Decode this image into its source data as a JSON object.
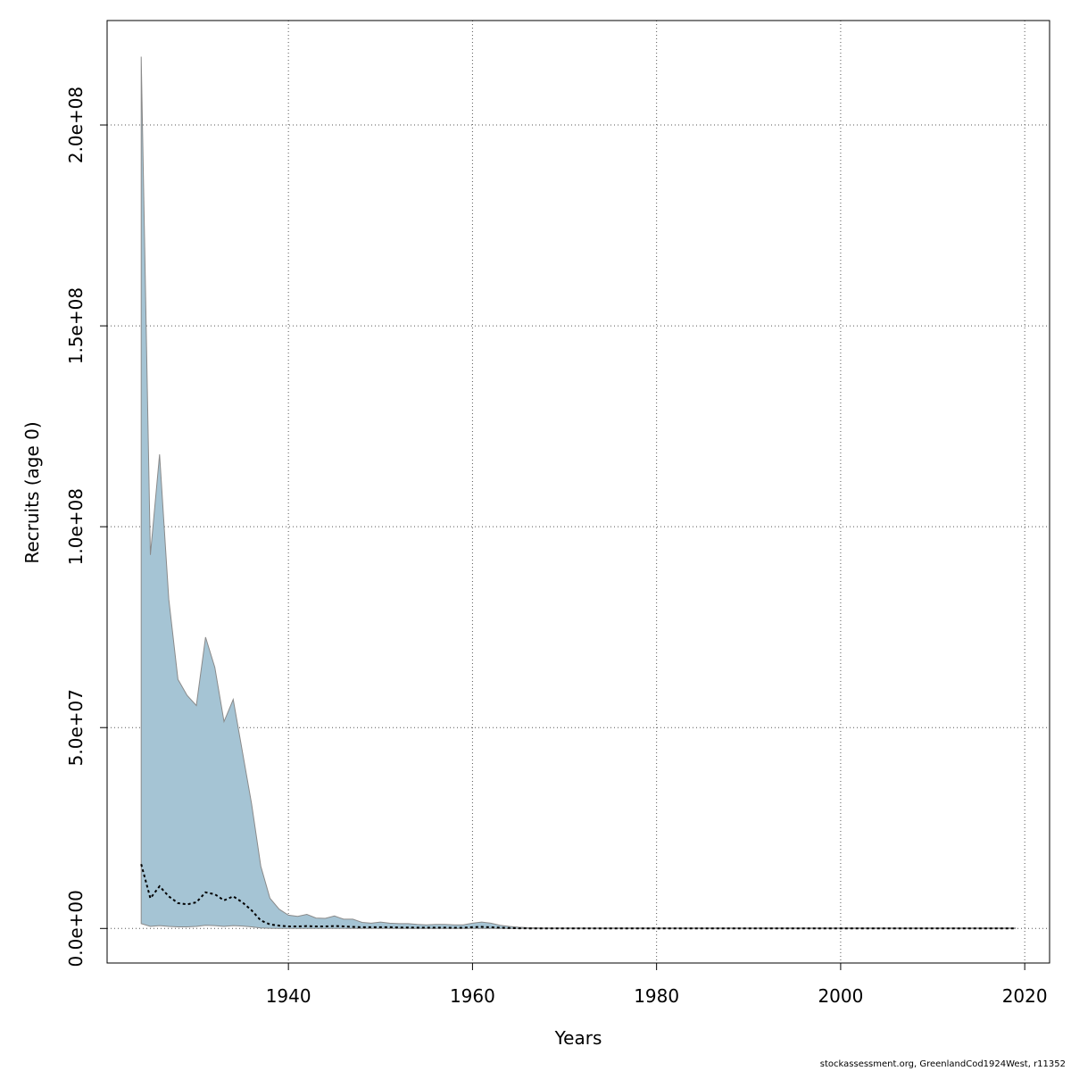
{
  "chart_data": {
    "type": "area",
    "xlabel": "Years",
    "ylabel": "Recruits (age 0)",
    "xlim": [
      1920.3,
      2022.7
    ],
    "ylim": [
      -8600000,
      226000000
    ],
    "xticks": [
      1940,
      1960,
      1980,
      2000,
      2020
    ],
    "xtick_labels": [
      "1940",
      "1960",
      "1980",
      "2000",
      "2020"
    ],
    "yticks": [
      0,
      50000000,
      100000000,
      150000000,
      200000000
    ],
    "ytick_labels": [
      "0.0e+00",
      "5.0e+07",
      "1.0e+08",
      "1.5e+08",
      "2.0e+08"
    ],
    "grid": true,
    "colors": {
      "band_fill": "#a5c4d4",
      "band_edge": "#8a8a8a",
      "line": "#000000",
      "grid": "#555555"
    },
    "x": [
      1924,
      1925,
      1926,
      1927,
      1928,
      1929,
      1930,
      1931,
      1932,
      1933,
      1934,
      1935,
      1936,
      1937,
      1938,
      1939,
      1940,
      1941,
      1942,
      1943,
      1944,
      1945,
      1946,
      1947,
      1948,
      1949,
      1950,
      1951,
      1952,
      1953,
      1954,
      1955,
      1956,
      1957,
      1958,
      1959,
      1960,
      1961,
      1962,
      1963,
      1964,
      1965,
      1966,
      1967,
      1968,
      1969,
      1970,
      1971,
      1972,
      1973,
      1974,
      1975,
      1976,
      1977,
      1978,
      1979,
      1980,
      1981,
      1982,
      1983,
      1984,
      1985,
      1986,
      1987,
      1988,
      1989,
      1990,
      1991,
      1992,
      1993,
      1994,
      1995,
      1996,
      1997,
      1998,
      1999,
      2000,
      2001,
      2002,
      2003,
      2004,
      2005,
      2006,
      2007,
      2008,
      2009,
      2010,
      2011,
      2012,
      2013,
      2014,
      2015,
      2016,
      2017,
      2018,
      2019
    ],
    "series": [
      {
        "role": "upper",
        "values": [
          217000000,
          93000000,
          118000000,
          82000000,
          62000000,
          58000000,
          55500000,
          72500000,
          65000000,
          51500000,
          57000000,
          44000000,
          31000000,
          15500000,
          7500000,
          4800000,
          3300000,
          3000000,
          3500000,
          2600000,
          2500000,
          3100000,
          2300000,
          2300000,
          1500000,
          1300000,
          1600000,
          1300000,
          1200000,
          1200000,
          1000000,
          900000,
          1000000,
          1000000,
          900000,
          900000,
          1300000,
          1600000,
          1300000,
          800000,
          500000,
          300000,
          200000,
          150000,
          120000,
          100000,
          100000,
          100000,
          100000,
          100000,
          100000,
          100000,
          100000,
          100000,
          100000,
          100000,
          100000,
          100000,
          100000,
          100000,
          100000,
          100000,
          100000,
          100000,
          100000,
          100000,
          100000,
          100000,
          100000,
          100000,
          100000,
          100000,
          100000,
          100000,
          100000,
          100000,
          100000,
          100000,
          100000,
          100000,
          100000,
          100000,
          100000,
          100000,
          100000,
          100000,
          100000,
          100000,
          100000,
          100000,
          100000,
          100000,
          100000,
          100000,
          100000,
          100000
        ]
      },
      {
        "role": "median",
        "values": [
          16000000,
          7500000,
          10500000,
          8000000,
          6300000,
          6000000,
          6500000,
          9000000,
          8500000,
          7000000,
          8000000,
          6500000,
          4500000,
          2000000,
          1000000,
          700000,
          500000,
          500000,
          600000,
          500000,
          500000,
          600000,
          500000,
          400000,
          300000,
          300000,
          300000,
          300000,
          250000,
          250000,
          200000,
          200000,
          200000,
          200000,
          180000,
          180000,
          300000,
          400000,
          300000,
          200000,
          100000,
          50000,
          30000,
          20000,
          20000,
          20000,
          20000,
          20000,
          20000,
          20000,
          20000,
          20000,
          20000,
          20000,
          20000,
          20000,
          20000,
          20000,
          20000,
          20000,
          20000,
          20000,
          20000,
          20000,
          20000,
          20000,
          20000,
          20000,
          20000,
          20000,
          20000,
          20000,
          20000,
          20000,
          20000,
          20000,
          20000,
          20000,
          20000,
          20000,
          20000,
          20000,
          20000,
          20000,
          20000,
          20000,
          20000,
          20000,
          20000,
          20000,
          20000,
          20000,
          20000,
          20000,
          20000,
          20000
        ]
      },
      {
        "role": "lower",
        "values": [
          1200000,
          500000,
          700000,
          500000,
          400000,
          400000,
          500000,
          800000,
          700000,
          500000,
          700000,
          600000,
          400000,
          100000,
          50000,
          30000,
          20000,
          20000,
          20000,
          20000,
          20000,
          20000,
          20000,
          20000,
          10000,
          10000,
          10000,
          10000,
          10000,
          10000,
          10000,
          10000,
          10000,
          10000,
          10000,
          10000,
          10000,
          10000,
          10000,
          10000,
          5000,
          2000,
          1000,
          1000,
          1000,
          1000,
          1000,
          1000,
          1000,
          1000,
          1000,
          1000,
          1000,
          1000,
          1000,
          1000,
          1000,
          1000,
          1000,
          1000,
          1000,
          1000,
          1000,
          1000,
          1000,
          1000,
          1000,
          1000,
          1000,
          1000,
          1000,
          1000,
          1000,
          1000,
          1000,
          1000,
          1000,
          1000,
          1000,
          1000,
          1000,
          1000,
          1000,
          1000,
          1000,
          1000,
          1000,
          1000,
          1000,
          1000,
          1000,
          1000,
          1000,
          1000,
          1000,
          1000
        ]
      }
    ]
  },
  "footer": "stockassessment.org, GreenlandCod1924West, r11352"
}
